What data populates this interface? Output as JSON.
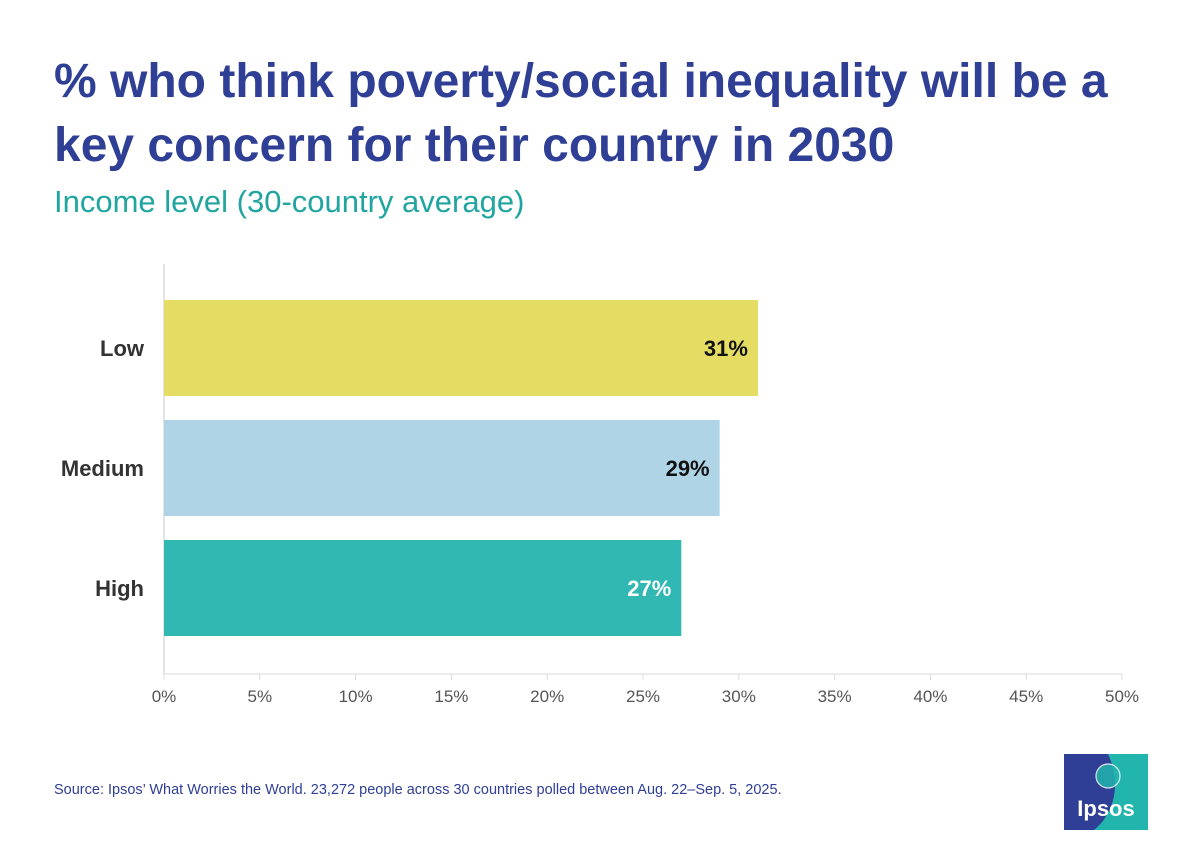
{
  "title": "% who think poverty/social inequality will be a key concern for their country in 2030",
  "subtitle": "Income level (30-country average)",
  "source": "Source: Ipsos’ What Worries the World. 23,272 people across 30 countries polled between Aug. 22–Sep. 5, 2025.",
  "logo_text": "Ipsos",
  "colors": {
    "title": "#2f3f95",
    "subtitle": "#21a5a0",
    "low": "#e5dd63",
    "medium": "#aed4e6",
    "high": "#31b8b3",
    "logo_blue": "#2f3f95",
    "logo_teal": "#21b5ad"
  },
  "chart_data": {
    "type": "bar",
    "orientation": "horizontal",
    "categories": [
      "Low",
      "Medium",
      "High"
    ],
    "values": [
      31,
      29,
      27
    ],
    "data_labels": [
      "31%",
      "29%",
      "27%"
    ],
    "bar_colors": [
      "#e5dd63",
      "#aed4e6",
      "#31b8b3"
    ],
    "label_colors": [
      "#111111",
      "#111111",
      "#ffffff"
    ],
    "xlim": [
      0,
      50
    ],
    "xticks": [
      0,
      5,
      10,
      15,
      20,
      25,
      30,
      35,
      40,
      45,
      50
    ],
    "xtick_labels": [
      "0%",
      "5%",
      "10%",
      "15%",
      "20%",
      "25%",
      "30%",
      "35%",
      "40%",
      "45%",
      "50%"
    ],
    "grid": false,
    "legend": "none"
  }
}
